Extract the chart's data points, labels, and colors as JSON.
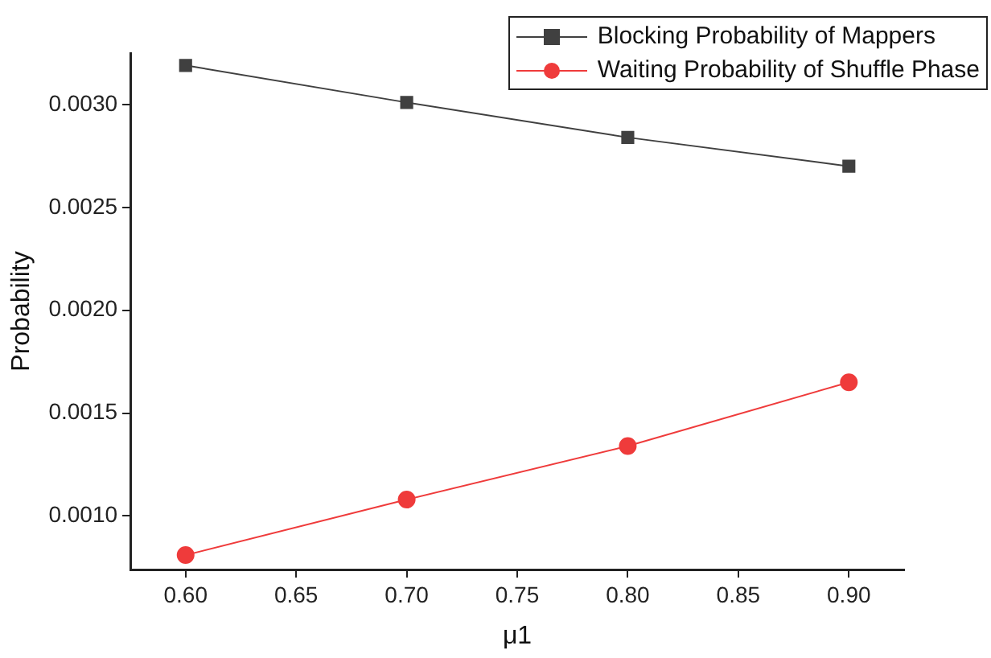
{
  "chart_data": {
    "type": "line",
    "xlabel": "μ1",
    "ylabel": "Probability",
    "x": [
      0.6,
      0.7,
      0.8,
      0.9
    ],
    "series": [
      {
        "name": "Blocking Probability of Mappers",
        "color": "#404040",
        "marker": "square",
        "values": [
          0.00319,
          0.00301,
          0.00284,
          0.0027
        ]
      },
      {
        "name": "Waiting Probability of Shuffle Phase",
        "color": "#ef3b3b",
        "marker": "circle",
        "values": [
          0.00081,
          0.00108,
          0.00134,
          0.00165
        ]
      }
    ],
    "xlim": [
      0.575,
      0.925
    ],
    "xticks": [
      {
        "value": 0.6,
        "label": "0.60"
      },
      {
        "value": 0.65,
        "label": "0.65"
      },
      {
        "value": 0.7,
        "label": "0.70"
      },
      {
        "value": 0.75,
        "label": "0.75"
      },
      {
        "value": 0.8,
        "label": "0.80"
      },
      {
        "value": 0.85,
        "label": "0.85"
      },
      {
        "value": 0.9,
        "label": "0.90"
      }
    ],
    "ylim": [
      0.00074,
      0.00325
    ],
    "yticks": [
      {
        "value": 0.001,
        "label": "0.0010"
      },
      {
        "value": 0.0015,
        "label": "0.0015"
      },
      {
        "value": 0.002,
        "label": "0.0020"
      },
      {
        "value": 0.0025,
        "label": "0.0025"
      },
      {
        "value": 0.003,
        "label": "0.0030"
      }
    ],
    "grid": false,
    "legend": "top right",
    "line_style": "solid"
  }
}
